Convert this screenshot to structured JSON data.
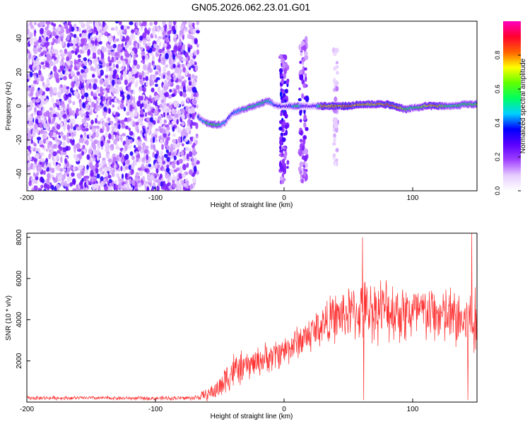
{
  "title": "GN05.2026.062.23.01.G01",
  "chart_data": [
    {
      "type": "heatmap",
      "title": "GN05.2026.062.23.01.G01",
      "xlabel": "Height of straight line (km)",
      "ylabel": "Frequency (Hz)",
      "xlim": [
        -200,
        150
      ],
      "ylim": [
        -50,
        50
      ],
      "xticks": [
        -200,
        -100,
        0,
        100
      ],
      "yticks": [
        -40,
        -20,
        0,
        20,
        40
      ],
      "colorbar": {
        "label": "Normalized spectral amplitude",
        "range": [
          0,
          1
        ],
        "ticks": [
          0.0,
          0.2,
          0.4,
          0.6,
          0.8
        ],
        "tick_labels": [
          "0.0",
          "0.2",
          "0.4",
          "0.6",
          "0.8"
        ],
        "colors": [
          "#ffffff",
          "#e6ccff",
          "#a040ff",
          "#5a00ff",
          "#0000ff",
          "#00d0ff",
          "#00ff60",
          "#60ff00",
          "#ffff00",
          "#ff6000",
          "#ff0030",
          "#ff00c0"
        ]
      },
      "noise_region": {
        "x_from": -200,
        "x_to": -67,
        "freq_from": -50,
        "freq_to": 50,
        "level": 0.15
      },
      "signal_track": {
        "x": [
          -67,
          -63,
          -60,
          -55,
          -50,
          -46,
          -43,
          -40,
          -36,
          -32,
          -28,
          -24,
          -20,
          -16,
          -12,
          -8,
          -4,
          0,
          5,
          10,
          15,
          20,
          25,
          30,
          40,
          50,
          60,
          70,
          80,
          85,
          90,
          95,
          100,
          105,
          110,
          115,
          120,
          125,
          130,
          135,
          140,
          145,
          150
        ],
        "freq": [
          -6,
          -9,
          -10,
          -11,
          -11,
          -10,
          -7,
          -4,
          -3,
          -2,
          -1,
          0,
          1,
          2,
          3,
          1,
          0,
          0,
          0,
          0,
          0,
          0,
          0,
          0,
          0,
          0,
          1,
          1,
          1,
          0,
          -1,
          -2,
          -1,
          -1,
          0,
          0,
          0,
          0,
          0,
          0,
          1,
          1,
          1
        ],
        "amp": [
          0.35,
          0.45,
          0.55,
          0.6,
          0.55,
          0.45,
          0.4,
          0.4,
          0.45,
          0.5,
          0.55,
          0.55,
          0.5,
          0.55,
          0.5,
          0.4,
          0.35,
          0.3,
          0.35,
          0.6,
          0.3,
          0.3,
          0.3,
          0.8,
          0.8,
          0.85,
          0.8,
          0.75,
          0.85,
          0.9,
          0.75,
          0.6,
          0.55,
          0.6,
          0.7,
          0.8,
          0.75,
          0.6,
          0.55,
          0.6,
          0.55,
          0.6,
          0.6
        ]
      },
      "vertical_bursts": [
        {
          "x": 0,
          "freq_from": -45,
          "freq_to": 30,
          "level": 0.3
        },
        {
          "x": 15,
          "freq_from": -45,
          "freq_to": 40,
          "level": 0.25
        },
        {
          "x": 40,
          "freq_from": -35,
          "freq_to": 35,
          "level": 0.12
        }
      ]
    },
    {
      "type": "line",
      "xlabel": "Height of straight line (km)",
      "ylabel": "SNR (10 * v/v)",
      "xlim": [
        -200,
        150
      ],
      "ylim": [
        0,
        8200
      ],
      "xticks": [
        -200,
        -100,
        0,
        100
      ],
      "yticks": [
        2000,
        4000,
        6000,
        8000
      ],
      "color": "#ff3030",
      "envelope": {
        "x": [
          -200,
          -150,
          -100,
          -70,
          -60,
          -50,
          -45,
          -40,
          -35,
          -30,
          -20,
          -10,
          0,
          10,
          20,
          30,
          40,
          50,
          60,
          70,
          80,
          90,
          100,
          110,
          120,
          130,
          140,
          150
        ],
        "mean": [
          200,
          200,
          180,
          200,
          350,
          700,
          1200,
          1500,
          1600,
          1700,
          2000,
          2200,
          2500,
          2900,
          3300,
          3800,
          4100,
          4300,
          4400,
          4500,
          4500,
          4400,
          4300,
          4300,
          4200,
          4100,
          3900,
          3700
        ],
        "spread": [
          80,
          80,
          80,
          100,
          250,
          500,
          700,
          800,
          700,
          600,
          600,
          650,
          650,
          700,
          800,
          900,
          1000,
          1100,
          1200,
          1300,
          1300,
          1300,
          1300,
          1200,
          1200,
          1300,
          1400,
          1500
        ]
      },
      "peaks": [
        {
          "x": 61,
          "y": 8000
        },
        {
          "x": 146,
          "y": 8200
        },
        {
          "x": 62,
          "y": 100
        },
        {
          "x": 143,
          "y": 100
        }
      ]
    }
  ]
}
